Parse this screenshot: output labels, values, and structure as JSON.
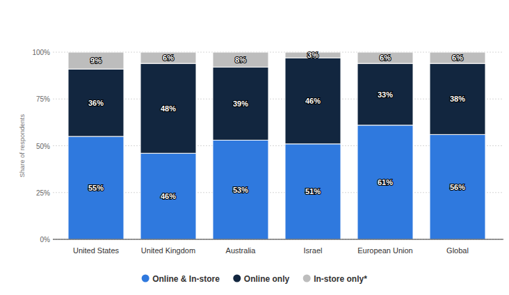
{
  "chart_data": {
    "type": "bar",
    "stacked": true,
    "data_labels": true,
    "grid": true,
    "legend": "bottom",
    "y_label": "Share of respondents",
    "categories": [
      "United States",
      "United Kingdom",
      "Australia",
      "Israel",
      "European Union",
      "Global"
    ],
    "ylim": [
      0,
      100
    ],
    "yticks": [
      {
        "value": 0,
        "label": "0%"
      },
      {
        "value": 25,
        "label": "25%"
      },
      {
        "value": 50,
        "label": "50%"
      },
      {
        "value": 75,
        "label": "75%"
      },
      {
        "value": 100,
        "label": "100%"
      }
    ],
    "series": [
      {
        "name": "Online & In-store",
        "color": "#2f79de",
        "values": [
          55,
          46,
          53,
          51,
          61,
          56
        ],
        "value_labels": [
          "55%",
          "46%",
          "53%",
          "51%",
          "61%",
          "56%"
        ]
      },
      {
        "name": "Online only",
        "color": "#12263f",
        "values": [
          36,
          48,
          39,
          46,
          33,
          38
        ],
        "value_labels": [
          "36%",
          "48%",
          "39%",
          "46%",
          "33%",
          "38%"
        ]
      },
      {
        "name": "In-store only*",
        "color": "#bdbdbd",
        "values": [
          9,
          6,
          8,
          3,
          6,
          6
        ],
        "value_labels": [
          "9%",
          "6%",
          "8%",
          "3%",
          "6%",
          "6%"
        ]
      }
    ]
  }
}
